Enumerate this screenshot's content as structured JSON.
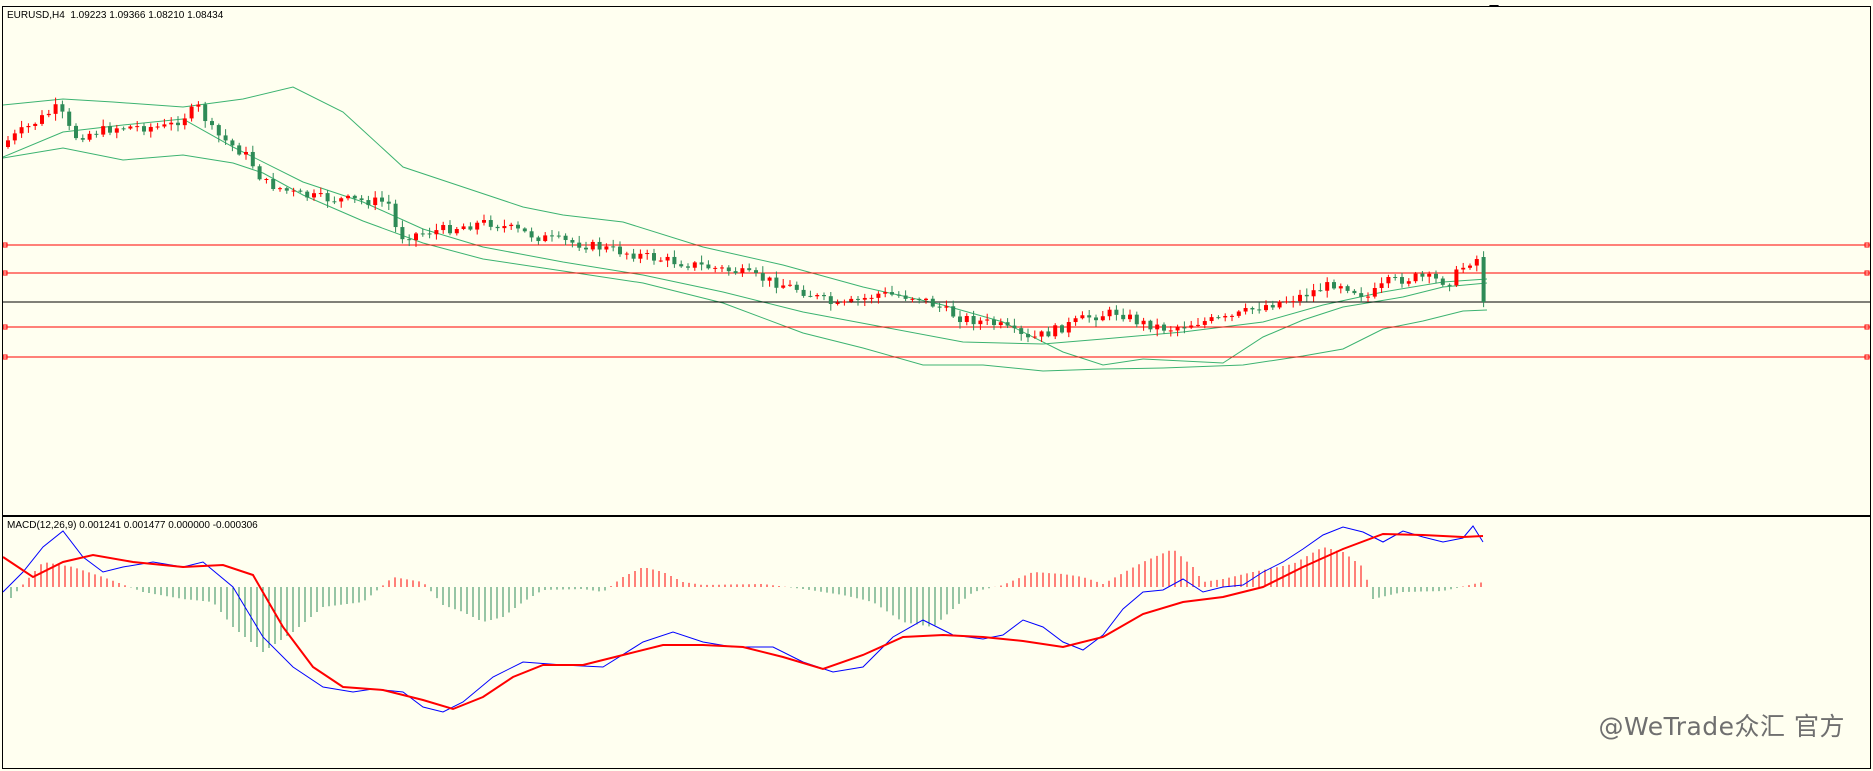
{
  "price_pane": {
    "label": "EURUSD,H4  1.09223 1.09366 1.08210 1.08434"
  },
  "macd_pane": {
    "label": "MACD(12,26,9) 0.001241 0.001477 0.000000 -0.000306"
  },
  "watermark": "@WeTrade众汇 官方",
  "colors": {
    "background": "#fffff0",
    "bull_candle": "#ff0000",
    "bear_candle": "#2e8b57",
    "bands": "#3cb371",
    "level_lines": "#ff0000",
    "current_price_line": "#000000",
    "macd_line": "#0000ff",
    "signal_line": "#ff0000",
    "hist_positive": "#ff0000",
    "hist_negative": "#2e8b57"
  }
}
